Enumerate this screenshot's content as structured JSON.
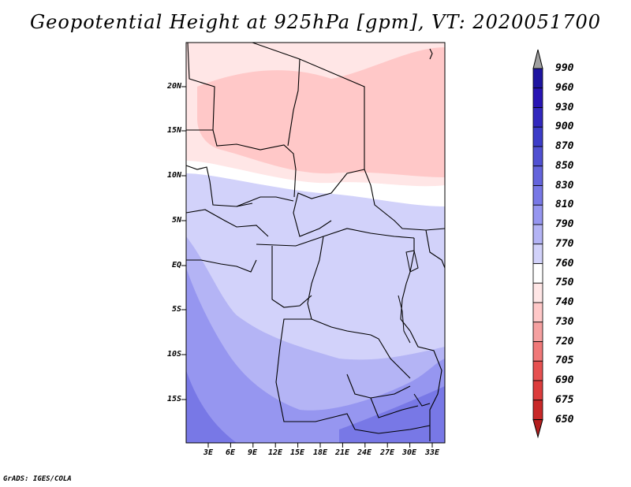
{
  "title": "Geopotential Height at 925hPa [gpm], VT: 2020051700",
  "footer": "GrADS: IGES/COLA",
  "lat_labels": [
    "20N",
    "15N",
    "10N",
    "5N",
    "EQ",
    "5S",
    "10S",
    "15S"
  ],
  "lon_labels": [
    "3E",
    "6E",
    "9E",
    "12E",
    "15E",
    "18E",
    "21E",
    "24E",
    "27E",
    "30E",
    "33E"
  ],
  "colorbar": {
    "labels": [
      "990",
      "960",
      "930",
      "900",
      "870",
      "850",
      "830",
      "810",
      "790",
      "770",
      "760",
      "750",
      "740",
      "730",
      "720",
      "705",
      "690",
      "675",
      "650"
    ],
    "colors": [
      "#1e14a0",
      "#2814b4",
      "#3228be",
      "#3c3cc8",
      "#5050d2",
      "#6464dc",
      "#7878e6",
      "#9696f0",
      "#b4b4f5",
      "#d2d2fa",
      "#ffffff",
      "#ffe6e6",
      "#ffc8c8",
      "#f5a0a0",
      "#f07878",
      "#e65050",
      "#dc3c3c",
      "#c82828",
      "#b41e1e"
    ]
  },
  "map_fields": {
    "colors": {
      "north_pink": "#ffc8c8",
      "light_pink": "#ffe6e6",
      "white_band": "#ffffff",
      "lavender": "#d2d2fa",
      "mid_blue": "#b4b4f5",
      "deep_blue": "#9696f0",
      "deepest_blue": "#7878e6"
    }
  }
}
